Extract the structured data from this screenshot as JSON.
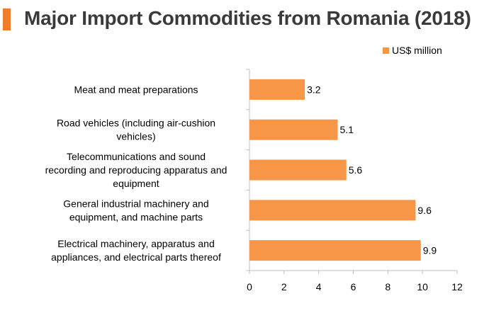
{
  "header": {
    "title": "Major Import Commodities from Romania (2018)",
    "accent_color": "#f07c2e"
  },
  "chart_data": {
    "type": "bar",
    "orientation": "horizontal",
    "title": "Major Import Commodities from Romania (2018)",
    "categories": [
      [
        "Meat and meat preparations"
      ],
      [
        "Road vehicles (including air-cushion",
        "vehicles)"
      ],
      [
        "Telecommunications and sound",
        "recording and reproducing apparatus and",
        "equipment"
      ],
      [
        "General industrial machinery and",
        "equipment, and machine parts"
      ],
      [
        "Electrical machinery, apparatus and",
        "appliances, and electrical parts thereof"
      ]
    ],
    "series": [
      {
        "name": "US$ million",
        "values": [
          3.2,
          5.1,
          5.6,
          9.6,
          9.9
        ],
        "labels": [
          "3.2",
          "5.1",
          "5.6",
          "9.6",
          "9.9"
        ],
        "color": "#f79646"
      }
    ],
    "xlim": [
      0,
      12
    ],
    "xticks": [
      "0",
      "2",
      "4",
      "6",
      "8",
      "10",
      "12"
    ],
    "grid": false,
    "legend": "top-right"
  }
}
